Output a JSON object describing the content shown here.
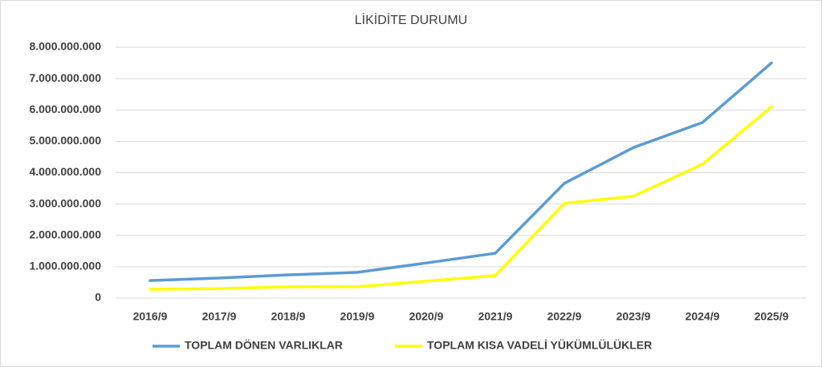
{
  "chart_data": {
    "type": "line",
    "title": "LİKİDİTE DURUMU",
    "categories": [
      "2016/9",
      "2017/9",
      "2018/9",
      "2019/9",
      "2020/9",
      "2021/9",
      "2022/9",
      "2023/9",
      "2024/9",
      "2025/9"
    ],
    "series": [
      {
        "name": "TOPLAM DÖNEN VARLIKLAR",
        "color": "#5b9bd5",
        "values": [
          560000000,
          640000000,
          740000000,
          820000000,
          1120000000,
          1430000000,
          3660000000,
          4800000000,
          5600000000,
          7500000000
        ]
      },
      {
        "name": "TOPLAM KISA VADELİ YÜKÜMLÜLÜKLER",
        "color": "#ffff00",
        "values": [
          280000000,
          300000000,
          360000000,
          360000000,
          540000000,
          720000000,
          3020000000,
          3250000000,
          4270000000,
          6100000000
        ]
      }
    ],
    "ylim": [
      0,
      8000000000
    ],
    "yticks": [
      0,
      {
        "value": 1000000000,
        "label": "1.000.000.000"
      },
      {
        "value": 2000000000,
        "label": "2.000.000.000"
      },
      {
        "value": 3000000000,
        "label": "3.000.000.000"
      },
      {
        "value": 4000000000,
        "label": "4.000.000.000"
      },
      {
        "value": 5000000000,
        "label": "5.000.000.000"
      },
      {
        "value": 6000000000,
        "label": "6.000.000.000"
      },
      {
        "value": 7000000000,
        "label": "7.000.000.000"
      },
      {
        "value": 8000000000,
        "label": "8.000.000.000"
      }
    ],
    "grid": true,
    "legend": "bottom"
  }
}
